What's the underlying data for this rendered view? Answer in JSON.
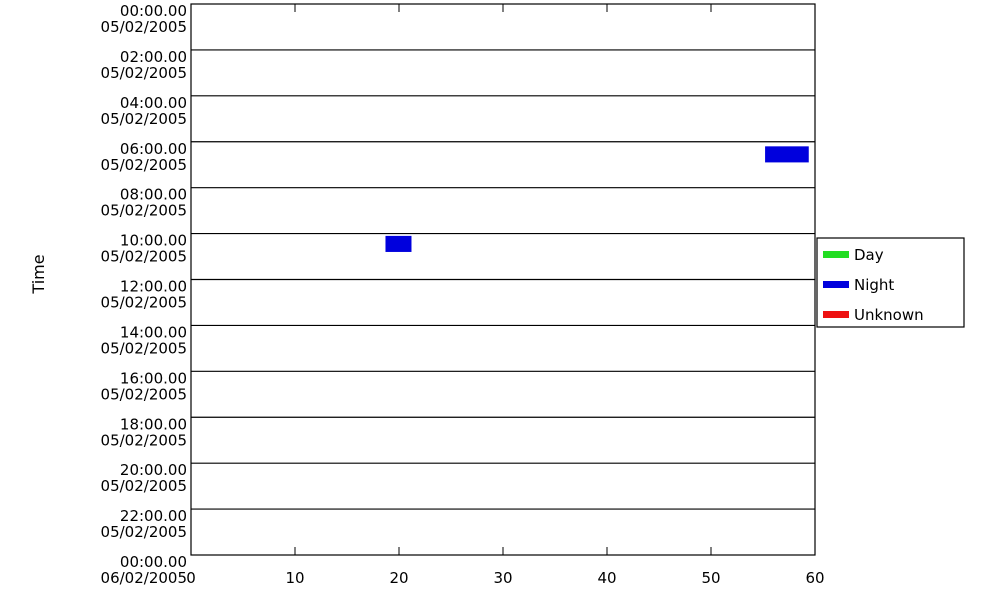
{
  "chart_data": {
    "type": "bar",
    "orientation": "horizontal",
    "ylabel": "Time",
    "xlabel": "",
    "xlim": [
      0,
      60
    ],
    "x_ticks": [
      "0",
      "10",
      "20",
      "30",
      "40",
      "50",
      "60"
    ],
    "y_ticks": [
      {
        "time": "00:00.00",
        "date": "05/02/2005"
      },
      {
        "time": "02:00.00",
        "date": "05/02/2005"
      },
      {
        "time": "04:00.00",
        "date": "05/02/2005"
      },
      {
        "time": "06:00.00",
        "date": "05/02/2005"
      },
      {
        "time": "08:00.00",
        "date": "05/02/2005"
      },
      {
        "time": "10:00.00",
        "date": "05/02/2005"
      },
      {
        "time": "12:00.00",
        "date": "05/02/2005"
      },
      {
        "time": "14:00.00",
        "date": "05/02/2005"
      },
      {
        "time": "16:00.00",
        "date": "05/02/2005"
      },
      {
        "time": "18:00.00",
        "date": "05/02/2005"
      },
      {
        "time": "20:00.00",
        "date": "05/02/2005"
      },
      {
        "time": "22:00.00",
        "date": "05/02/2005"
      },
      {
        "time": "00:00.00",
        "date": "06/02/2005"
      }
    ],
    "ylim_hours": [
      0,
      24
    ],
    "grid": "horizontal",
    "legend_position": "right",
    "series": [
      {
        "name": "Day",
        "color": "#22dd22",
        "bars": []
      },
      {
        "name": "Night",
        "color": "#0000dd",
        "bars": [
          {
            "x_start": 18.7,
            "x_end": 21.2,
            "t_start_hours": 10.1,
            "t_end_hours": 10.8
          },
          {
            "x_start": 55.2,
            "x_end": 59.4,
            "t_start_hours": 6.2,
            "t_end_hours": 6.9
          }
        ]
      },
      {
        "name": "Unknown",
        "color": "#ee1111",
        "bars": []
      }
    ]
  }
}
